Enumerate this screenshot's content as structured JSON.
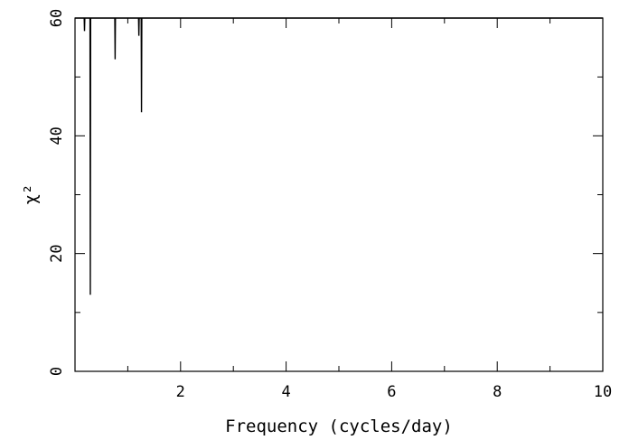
{
  "chart_data": {
    "type": "line",
    "title": "",
    "xlabel": "Frequency (cycles/day)",
    "ylabel": "χ²",
    "xlim": [
      0,
      10
    ],
    "ylim": [
      0,
      60
    ],
    "x_ticks": [
      2,
      4,
      6,
      8,
      10
    ],
    "y_ticks": [
      0,
      20,
      40,
      60
    ],
    "x_tick_labels": [
      "2",
      "4",
      "6",
      "8",
      "10"
    ],
    "y_tick_labels": [
      "0",
      "20",
      "40",
      "60"
    ],
    "grid": false,
    "line_color": "#000000",
    "dips": [
      {
        "x": 0.18,
        "y": 57.8
      },
      {
        "x": 0.29,
        "y": 13
      },
      {
        "x": 0.76,
        "y": 53
      },
      {
        "x": 1.21,
        "y": 57
      },
      {
        "x": 1.26,
        "y": 44
      }
    ]
  }
}
